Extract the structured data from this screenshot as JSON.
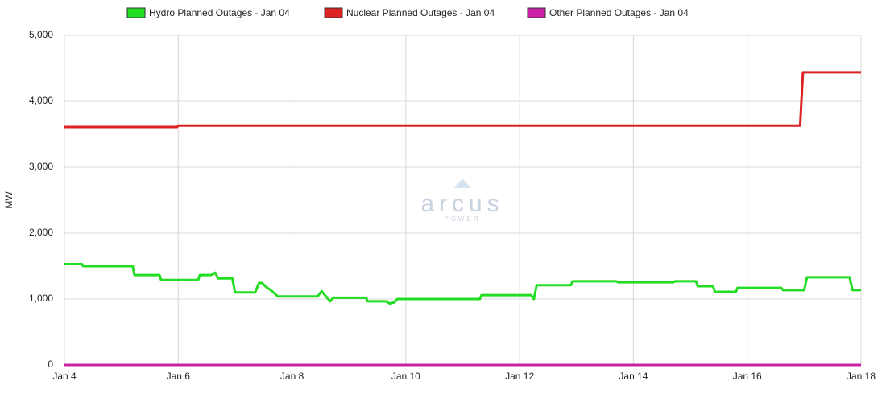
{
  "chart_data": {
    "type": "line",
    "y_label": "MW",
    "watermark": {
      "brand": "arcus",
      "tagline": "POWER"
    },
    "xlim": [
      4,
      18
    ],
    "xticks": [
      {
        "value": 4,
        "label": "Jan 4"
      },
      {
        "value": 6,
        "label": "Jan 6"
      },
      {
        "value": 8,
        "label": "Jan 8"
      },
      {
        "value": 10,
        "label": "Jan 10"
      },
      {
        "value": 12,
        "label": "Jan 12"
      },
      {
        "value": 14,
        "label": "Jan 14"
      },
      {
        "value": 16,
        "label": "Jan 16"
      },
      {
        "value": 18,
        "label": "Jan 18"
      }
    ],
    "ylim": [
      0,
      5000
    ],
    "yticks": [
      0,
      {
        "value": 1000,
        "label": "1,000"
      },
      {
        "value": 2000,
        "label": "2,000"
      },
      {
        "value": 3000,
        "label": "3,000"
      },
      {
        "value": 4000,
        "label": "4,000"
      },
      {
        "value": 5000,
        "label": "5,000"
      }
    ],
    "grid": true,
    "legend": "top",
    "series": [
      {
        "name": "Hydro Planned Outages - Jan 04",
        "color": "#22dd22",
        "x": [
          4,
          4.31,
          4.33,
          5.2,
          5.23,
          5.67,
          5.7,
          6.35,
          6.38,
          6.58,
          6.65,
          6.7,
          6.95,
          7.0,
          7.35,
          7.42,
          7.47,
          7.55,
          7.65,
          7.75,
          8.45,
          8.52,
          8.67,
          8.72,
          9.3,
          9.33,
          9.65,
          9.72,
          9.8,
          9.85,
          11.3,
          11.33,
          12.2,
          12.25,
          12.3,
          12.9,
          12.93,
          13.7,
          13.73,
          14.7,
          14.73,
          15.1,
          15.13,
          15.4,
          15.43,
          15.8,
          15.83,
          16.6,
          16.63,
          17.0,
          17.05,
          17.8,
          17.85,
          18
        ],
        "values": [
          1530,
          1530,
          1500,
          1500,
          1365,
          1365,
          1290,
          1290,
          1365,
          1365,
          1400,
          1315,
          1315,
          1100,
          1100,
          1245,
          1245,
          1180,
          1120,
          1040,
          1040,
          1120,
          965,
          1020,
          1020,
          965,
          965,
          930,
          950,
          1000,
          1000,
          1060,
          1060,
          1000,
          1210,
          1210,
          1270,
          1270,
          1255,
          1255,
          1270,
          1270,
          1195,
          1195,
          1110,
          1110,
          1170,
          1170,
          1135,
          1135,
          1330,
          1330,
          1135,
          1135
        ]
      },
      {
        "name": "Nuclear Planned Outages - Jan 04",
        "color": "#dd2222",
        "x": [
          4,
          5.98,
          6,
          16.93,
          16.98,
          18
        ],
        "values": [
          3610,
          3610,
          3630,
          3630,
          4440,
          4440
        ]
      },
      {
        "name": "Other Planned Outages - Jan 04",
        "color": "#cc22aa",
        "x": [
          4,
          18
        ],
        "values": [
          0,
          0
        ]
      }
    ]
  }
}
